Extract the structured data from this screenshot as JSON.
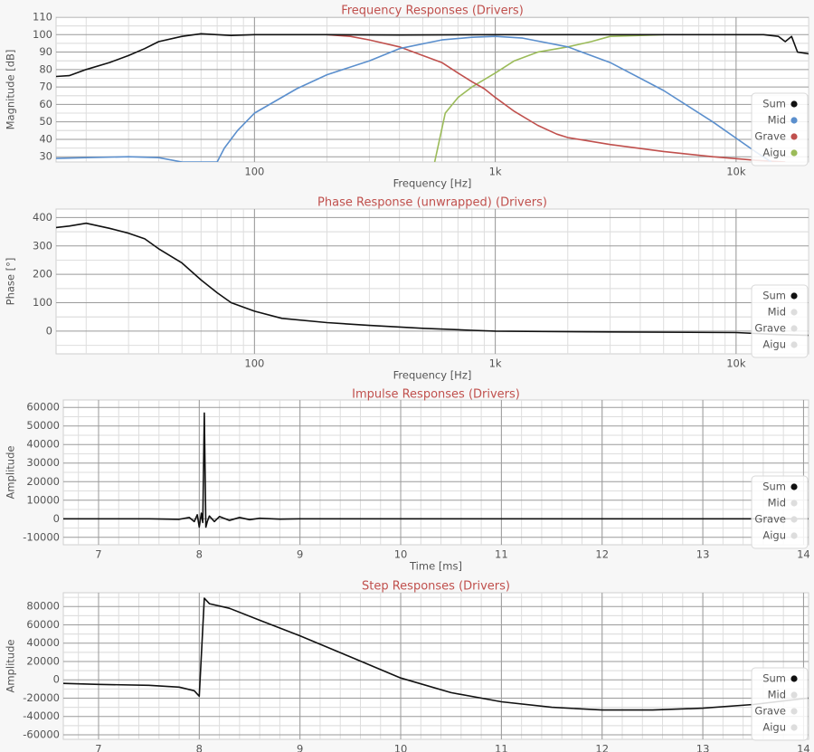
{
  "colors": {
    "title": "#c0504d",
    "axis_text": "#555555",
    "grid_major": "#9a9a9a",
    "grid_minor": "#dedede",
    "plot_bg": "#ffffff",
    "Sum": "#111111",
    "Mid": "#5b8fcd",
    "Grave": "#c0504d",
    "Aigu": "#9bbb59",
    "inactive": "#dddddd"
  },
  "chart_data": [
    {
      "type": "line",
      "title": "Frequency Responses (Drivers)",
      "xlabel": "Frequency [Hz]",
      "ylabel": "Magnitude [dB]",
      "xscale": "log",
      "xlim": [
        15,
        20000
      ],
      "ylim": [
        27,
        110
      ],
      "xticks": [
        100,
        1000,
        10000
      ],
      "xtick_labels": [
        "100",
        "1k",
        "10k"
      ],
      "yticks": [
        30,
        40,
        50,
        60,
        70,
        80,
        90,
        100,
        110
      ],
      "ytick_labels": [
        "30",
        "40",
        "50",
        "60",
        "70",
        "80",
        "90",
        "100",
        "110"
      ],
      "grid": true,
      "legend_position": "right",
      "legend": [
        {
          "name": "Sum",
          "active": true
        },
        {
          "name": "Mid",
          "active": true
        },
        {
          "name": "Grave",
          "active": true
        },
        {
          "name": "Aigu",
          "active": true
        }
      ],
      "series": [
        {
          "name": "Sum",
          "points": [
            [
              15,
              76
            ],
            [
              17,
              76.5
            ],
            [
              20,
              80
            ],
            [
              25,
              84
            ],
            [
              30,
              88
            ],
            [
              35,
              92
            ],
            [
              40,
              96
            ],
            [
              50,
              99
            ],
            [
              60,
              100.5
            ],
            [
              80,
              99.5
            ],
            [
              100,
              100
            ],
            [
              200,
              100
            ],
            [
              400,
              99.8
            ],
            [
              1000,
              100
            ],
            [
              3000,
              100
            ],
            [
              10000,
              100
            ],
            [
              13000,
              100
            ],
            [
              15000,
              99
            ],
            [
              16000,
              96
            ],
            [
              17000,
              99
            ],
            [
              18000,
              90
            ],
            [
              20000,
              89
            ]
          ]
        },
        {
          "name": "Mid",
          "points": [
            [
              15,
              29
            ],
            [
              20,
              29.5
            ],
            [
              30,
              30
            ],
            [
              40,
              29.5
            ],
            [
              50,
              27
            ],
            [
              70,
              27
            ],
            [
              75,
              35
            ],
            [
              85,
              45
            ],
            [
              100,
              55
            ],
            [
              150,
              69
            ],
            [
              200,
              77
            ],
            [
              300,
              85
            ],
            [
              400,
              92
            ],
            [
              600,
              97
            ],
            [
              800,
              98.5
            ],
            [
              1000,
              99
            ],
            [
              1300,
              98
            ],
            [
              2000,
              93
            ],
            [
              3000,
              84
            ],
            [
              5000,
              68
            ],
            [
              8000,
              50
            ],
            [
              12000,
              33
            ],
            [
              14000,
              27
            ]
          ]
        },
        {
          "name": "Grave",
          "points": [
            [
              200,
              100
            ],
            [
              250,
              99
            ],
            [
              300,
              97
            ],
            [
              400,
              93
            ],
            [
              500,
              88
            ],
            [
              600,
              84
            ],
            [
              700,
              78
            ],
            [
              800,
              73
            ],
            [
              900,
              69
            ],
            [
              1000,
              64
            ],
            [
              1200,
              56
            ],
            [
              1500,
              48
            ],
            [
              1800,
              43
            ],
            [
              2000,
              41
            ],
            [
              3000,
              37
            ],
            [
              5000,
              33
            ],
            [
              8000,
              30
            ],
            [
              12000,
              28
            ],
            [
              16000,
              27
            ]
          ]
        },
        {
          "name": "Aigu",
          "points": [
            [
              560,
              27
            ],
            [
              620,
              55
            ],
            [
              700,
              64
            ],
            [
              800,
              70
            ],
            [
              1000,
              78
            ],
            [
              1200,
              85
            ],
            [
              1500,
              90
            ],
            [
              2000,
              93
            ],
            [
              2500,
              96
            ],
            [
              3000,
              99
            ],
            [
              4000,
              99.5
            ],
            [
              5000,
              100
            ]
          ]
        }
      ]
    },
    {
      "type": "line",
      "title": "Phase Response (unwrapped) (Drivers)",
      "xlabel": "Frequency [Hz]",
      "ylabel": "Phase [°]",
      "xscale": "log",
      "xlim": [
        15,
        20000
      ],
      "ylim": [
        -80,
        430
      ],
      "xticks": [
        100,
        1000,
        10000
      ],
      "xtick_labels": [
        "100",
        "1k",
        "10k"
      ],
      "yticks": [
        0,
        100,
        200,
        300,
        400
      ],
      "ytick_labels": [
        "0",
        "100",
        "200",
        "300",
        "400"
      ],
      "grid": true,
      "legend_position": "right",
      "legend": [
        {
          "name": "Sum",
          "active": true
        },
        {
          "name": "Mid",
          "active": false
        },
        {
          "name": "Grave",
          "active": false
        },
        {
          "name": "Aigu",
          "active": false
        }
      ],
      "series": [
        {
          "name": "Sum",
          "points": [
            [
              15,
              365
            ],
            [
              17,
              370
            ],
            [
              20,
              380
            ],
            [
              25,
              362
            ],
            [
              30,
              345
            ],
            [
              35,
              325
            ],
            [
              40,
              290
            ],
            [
              50,
              240
            ],
            [
              60,
              180
            ],
            [
              70,
              135
            ],
            [
              80,
              100
            ],
            [
              100,
              70
            ],
            [
              130,
              45
            ],
            [
              200,
              30
            ],
            [
              300,
              20
            ],
            [
              500,
              10
            ],
            [
              800,
              3
            ],
            [
              1000,
              0
            ],
            [
              3000,
              -3
            ],
            [
              10000,
              -5
            ],
            [
              15000,
              -12
            ],
            [
              20000,
              -15
            ]
          ]
        }
      ]
    },
    {
      "type": "line",
      "title": "Impulse Responses (Drivers)",
      "xlabel": "Time [ms]",
      "ylabel": "Amplitude",
      "xscale": "linear",
      "xlim": [
        6.65,
        14.05
      ],
      "ylim": [
        -14000,
        64000
      ],
      "xticks": [
        7,
        8,
        9,
        10,
        11,
        12,
        13,
        14
      ],
      "xtick_labels": [
        "7",
        "8",
        "9",
        "10",
        "11",
        "12",
        "13",
        "14"
      ],
      "yticks": [
        -10000,
        0,
        10000,
        20000,
        30000,
        40000,
        50000,
        60000
      ],
      "ytick_labels": [
        "-10000",
        "0",
        "10000",
        "20000",
        "30000",
        "40000",
        "50000",
        "60000"
      ],
      "grid": true,
      "legend_position": "right",
      "legend": [
        {
          "name": "Sum",
          "active": true
        },
        {
          "name": "Mid",
          "active": false
        },
        {
          "name": "Grave",
          "active": false
        },
        {
          "name": "Aigu",
          "active": false
        }
      ],
      "series": [
        {
          "name": "Sum",
          "points": [
            [
              6.65,
              0
            ],
            [
              7.5,
              0
            ],
            [
              7.8,
              -300
            ],
            [
              7.9,
              700
            ],
            [
              7.95,
              -1500
            ],
            [
              7.98,
              2200
            ],
            [
              8.0,
              -4500
            ],
            [
              8.02,
              3000
            ],
            [
              8.035,
              -2000
            ],
            [
              8.05,
              57000
            ],
            [
              8.065,
              -4500
            ],
            [
              8.08,
              -1500
            ],
            [
              8.1,
              1500
            ],
            [
              8.15,
              -1500
            ],
            [
              8.2,
              1200
            ],
            [
              8.3,
              -900
            ],
            [
              8.4,
              700
            ],
            [
              8.5,
              -500
            ],
            [
              8.6,
              300
            ],
            [
              8.8,
              -200
            ],
            [
              9.0,
              0
            ],
            [
              14.05,
              0
            ]
          ]
        }
      ]
    },
    {
      "type": "line",
      "title": "Step Responses (Drivers)",
      "xlabel": "Time [ms]",
      "ylabel": "Amplitude",
      "xscale": "linear",
      "xlim": [
        6.65,
        14.05
      ],
      "ylim": [
        -65000,
        95000
      ],
      "xticks": [
        7,
        8,
        9,
        10,
        11,
        12,
        13,
        14
      ],
      "xtick_labels": [
        "7",
        "8",
        "9",
        "10",
        "11",
        "12",
        "13",
        "14"
      ],
      "yticks": [
        -60000,
        -40000,
        -20000,
        0,
        20000,
        40000,
        60000,
        80000
      ],
      "ytick_labels": [
        "-60000",
        "-40000",
        "-20000",
        "0",
        "20000",
        "40000",
        "60000",
        "80000"
      ],
      "grid": true,
      "legend_position": "right",
      "legend": [
        {
          "name": "Sum",
          "active": true
        },
        {
          "name": "Mid",
          "active": false
        },
        {
          "name": "Grave",
          "active": false
        },
        {
          "name": "Aigu",
          "active": false
        }
      ],
      "series": [
        {
          "name": "Sum",
          "points": [
            [
              6.65,
              -4000
            ],
            [
              7.0,
              -5000
            ],
            [
              7.5,
              -6000
            ],
            [
              7.8,
              -8000
            ],
            [
              7.95,
              -12000
            ],
            [
              8.0,
              -18000
            ],
            [
              8.05,
              89000
            ],
            [
              8.1,
              83000
            ],
            [
              8.3,
              78000
            ],
            [
              8.6,
              65000
            ],
            [
              9.0,
              48000
            ],
            [
              9.5,
              25000
            ],
            [
              10.0,
              2000
            ],
            [
              10.5,
              -14000
            ],
            [
              11.0,
              -24000
            ],
            [
              11.5,
              -30000
            ],
            [
              12.0,
              -33000
            ],
            [
              12.5,
              -33000
            ],
            [
              13.0,
              -31000
            ],
            [
              13.5,
              -27000
            ],
            [
              14.05,
              -20000
            ]
          ]
        }
      ]
    }
  ]
}
